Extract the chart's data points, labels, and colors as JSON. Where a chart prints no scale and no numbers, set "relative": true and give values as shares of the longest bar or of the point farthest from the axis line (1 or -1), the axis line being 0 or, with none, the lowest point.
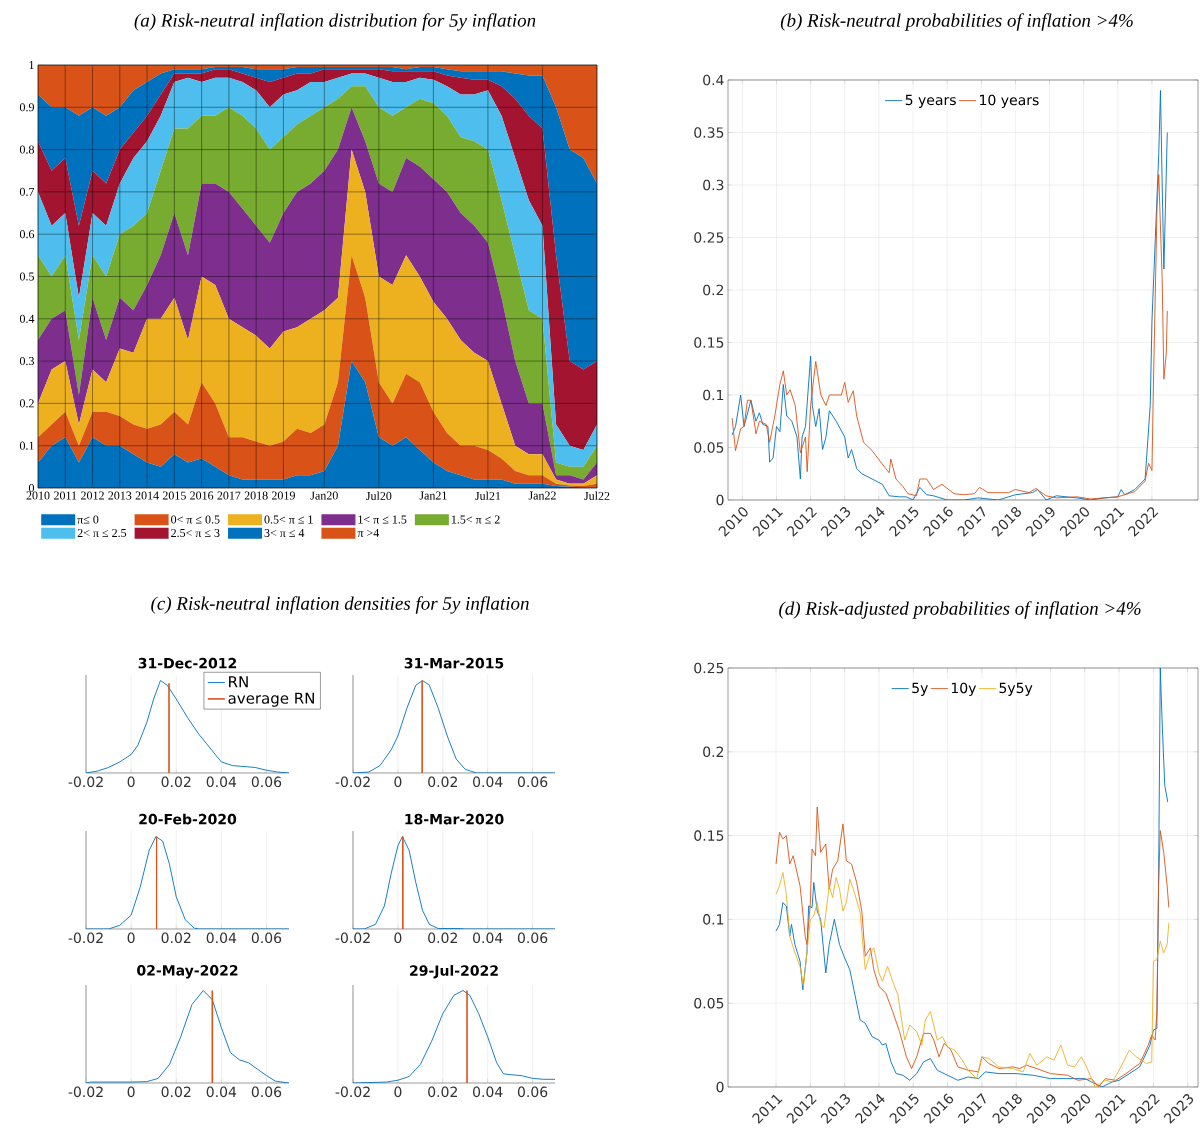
{
  "chart_data": [
    {
      "type": "area",
      "stacked": true,
      "title": "(a)   Risk-neutral inflation distribution for 5y inflation",
      "categories": [
        "2010",
        null,
        "2011",
        null,
        "2012",
        null,
        "2013",
        null,
        "2014",
        null,
        "2015",
        null,
        "2016",
        null,
        "2017",
        null,
        "2018",
        null,
        "2019",
        null,
        null,
        "Jan20",
        null,
        null,
        null,
        "Jul20",
        null,
        null,
        null,
        "Jan21",
        null,
        null,
        null,
        "Jul21",
        null,
        null,
        null,
        "Jan22",
        null,
        null,
        null,
        "Jul22"
      ],
      "ylim": [
        0,
        1
      ],
      "yticks": [
        0,
        0.1,
        0.2,
        0.3,
        0.4,
        0.5,
        0.6,
        0.7,
        0.8,
        0.9,
        1
      ],
      "grid": true,
      "legend": "bottom",
      "series": [
        {
          "name": "π≤ 0",
          "color": "#0072bd",
          "values": [
            0.06,
            0.1,
            0.12,
            0.06,
            0.12,
            0.1,
            0.1,
            0.08,
            0.06,
            0.05,
            0.08,
            0.06,
            0.07,
            0.05,
            0.03,
            0.02,
            0.02,
            0.02,
            0.02,
            0.03,
            0.03,
            0.04,
            0.1,
            0.3,
            0.25,
            0.12,
            0.1,
            0.12,
            0.09,
            0.06,
            0.04,
            0.03,
            0.02,
            0.02,
            0.02,
            0.01,
            0.01,
            0.01,
            0.005,
            0.003,
            0.002,
            0.002
          ]
        },
        {
          "name": "0< π ≤ 0.5",
          "color": "#d95319",
          "values": [
            0.06,
            0.05,
            0.06,
            0.04,
            0.06,
            0.08,
            0.07,
            0.07,
            0.08,
            0.1,
            0.1,
            0.09,
            0.18,
            0.15,
            0.09,
            0.1,
            0.09,
            0.08,
            0.09,
            0.11,
            0.1,
            0.11,
            0.15,
            0.25,
            0.2,
            0.13,
            0.1,
            0.15,
            0.16,
            0.12,
            0.09,
            0.07,
            0.08,
            0.07,
            0.05,
            0.03,
            0.02,
            0.02,
            0.005,
            0.003,
            0.003,
            0.008
          ]
        },
        {
          "name": "0.5< π ≤ 1",
          "color": "#edb120",
          "values": [
            0.08,
            0.13,
            0.12,
            0.05,
            0.1,
            0.07,
            0.16,
            0.17,
            0.26,
            0.25,
            0.27,
            0.2,
            0.25,
            0.28,
            0.28,
            0.26,
            0.25,
            0.23,
            0.26,
            0.24,
            0.27,
            0.27,
            0.2,
            0.25,
            0.25,
            0.25,
            0.28,
            0.28,
            0.25,
            0.26,
            0.27,
            0.25,
            0.22,
            0.21,
            0.13,
            0.06,
            0.05,
            0.05,
            0.01,
            0.004,
            0.005,
            0.02
          ]
        },
        {
          "name": "1< π ≤ 1.5",
          "color": "#7e2f8e",
          "values": [
            0.15,
            0.12,
            0.12,
            0.07,
            0.17,
            0.1,
            0.12,
            0.1,
            0.08,
            0.15,
            0.2,
            0.2,
            0.22,
            0.24,
            0.3,
            0.28,
            0.26,
            0.25,
            0.28,
            0.32,
            0.32,
            0.33,
            0.35,
            0.1,
            0.12,
            0.22,
            0.22,
            0.23,
            0.26,
            0.29,
            0.3,
            0.3,
            0.3,
            0.28,
            0.25,
            0.2,
            0.12,
            0.12,
            0.01,
            0.02,
            0.01,
            0.03
          ]
        },
        {
          "name": "1.5< π ≤ 2",
          "color": "#77ac30",
          "values": [
            0.2,
            0.1,
            0.13,
            0.13,
            0.1,
            0.15,
            0.15,
            0.2,
            0.17,
            0.2,
            0.2,
            0.3,
            0.16,
            0.16,
            0.2,
            0.22,
            0.23,
            0.22,
            0.18,
            0.16,
            0.16,
            0.15,
            0.12,
            0.05,
            0.13,
            0.18,
            0.18,
            0.12,
            0.16,
            0.18,
            0.18,
            0.18,
            0.2,
            0.22,
            0.23,
            0.25,
            0.22,
            0.2,
            0.03,
            0.02,
            0.03,
            0.04
          ]
        },
        {
          "name": "2< π ≤ 2.5",
          "color": "#4dbeee",
          "values": [
            0.15,
            0.12,
            0.1,
            0.1,
            0.1,
            0.12,
            0.12,
            0.16,
            0.17,
            0.13,
            0.11,
            0.12,
            0.08,
            0.09,
            0.07,
            0.08,
            0.09,
            0.1,
            0.1,
            0.08,
            0.08,
            0.06,
            0.05,
            0.03,
            0.03,
            0.07,
            0.08,
            0.06,
            0.05,
            0.055,
            0.07,
            0.1,
            0.11,
            0.14,
            0.2,
            0.23,
            0.26,
            0.22,
            0.09,
            0.05,
            0.04,
            0.05
          ]
        },
        {
          "name": "2.5< π ≤ 3",
          "color": "#a2142f",
          "values": [
            0.12,
            0.13,
            0.13,
            0.17,
            0.1,
            0.1,
            0.08,
            0.06,
            0.06,
            0.05,
            0.02,
            0.01,
            0.02,
            0.02,
            0.02,
            0.02,
            0.03,
            0.06,
            0.04,
            0.04,
            0.02,
            0.03,
            0.02,
            0.01,
            0.01,
            0.02,
            0.025,
            0.025,
            0.015,
            0.02,
            0.025,
            0.04,
            0.035,
            0.025,
            0.07,
            0.14,
            0.2,
            0.23,
            0.4,
            0.2,
            0.19,
            0.15
          ]
        },
        {
          "name": "3< π ≤ 4",
          "color": "#0072bd",
          "values": [
            0.11,
            0.15,
            0.12,
            0.26,
            0.15,
            0.16,
            0.1,
            0.1,
            0.08,
            0.05,
            0.01,
            0.01,
            0.01,
            0.005,
            0.005,
            0.015,
            0.02,
            0.03,
            0.02,
            0.015,
            0.015,
            0.005,
            0.005,
            0.005,
            0.005,
            0.005,
            0.01,
            0.005,
            0.01,
            0.01,
            0.015,
            0.015,
            0.02,
            0.02,
            0.035,
            0.06,
            0.095,
            0.125,
            0.35,
            0.5,
            0.5,
            0.42
          ]
        },
        {
          "name": "π >4",
          "color": "#d95319",
          "values": [
            0.07,
            0.1,
            0.1,
            0.12,
            0.1,
            0.12,
            0.1,
            0.06,
            0.04,
            0.02,
            0.01,
            0.01,
            0.01,
            0.005,
            0.005,
            0.005,
            0.01,
            0.01,
            0.01,
            0.005,
            0.005,
            0.005,
            0.005,
            0.005,
            0.005,
            0.005,
            0.005,
            0.01,
            0.005,
            0.005,
            0.01,
            0.015,
            0.015,
            0.015,
            0.015,
            0.02,
            0.025,
            0.025,
            0.1,
            0.2,
            0.22,
            0.28
          ]
        }
      ]
    },
    {
      "type": "line",
      "title": "(b)   Risk-neutral probabilities of inflation >4%",
      "xlim": [
        2009.58,
        2023.35
      ],
      "xticks": [
        2010,
        2011,
        2012,
        2013,
        2014,
        2015,
        2016,
        2017,
        2018,
        2019,
        2020,
        2021,
        2022
      ],
      "ylim": [
        0,
        0.4
      ],
      "yticks": [
        0,
        0.05,
        0.1,
        0.15,
        0.2,
        0.25,
        0.3,
        0.35,
        0.4
      ],
      "grid": true,
      "legend": "top",
      "series": [
        {
          "name": "5 years",
          "color": "#0072bd",
          "x": [
            2009.7,
            2009.8,
            2009.95,
            2010.05,
            2010.25,
            2010.4,
            2010.5,
            2010.6,
            2010.75,
            2010.8,
            2010.9,
            2011.0,
            2011.1,
            2011.2,
            2011.3,
            2011.45,
            2011.55,
            2011.6,
            2011.7,
            2011.75,
            2011.85,
            2012.0,
            2012.05,
            2012.15,
            2012.25,
            2012.35,
            2012.45,
            2012.55,
            2012.75,
            2013.0,
            2013.1,
            2013.2,
            2013.35,
            2013.5,
            2013.8,
            2014.1,
            2014.3,
            2014.6,
            2014.8,
            2015.0,
            2015.2,
            2015.4,
            2015.6,
            2016.0,
            2016.5,
            2016.9,
            2017.5,
            2018.0,
            2018.5,
            2018.65,
            2018.9,
            2019.2,
            2019.8,
            2020.2,
            2020.6,
            2021.0,
            2021.1,
            2021.2,
            2021.5,
            2021.8,
            2021.95,
            2022.0,
            2022.1,
            2022.2,
            2022.25,
            2022.3,
            2022.35,
            2022.45
          ],
          "values": [
            0.062,
            0.07,
            0.1,
            0.07,
            0.095,
            0.075,
            0.083,
            0.072,
            0.07,
            0.036,
            0.04,
            0.07,
            0.065,
            0.11,
            0.08,
            0.075,
            0.065,
            0.06,
            0.02,
            0.06,
            0.07,
            0.137,
            0.09,
            0.07,
            0.087,
            0.048,
            0.06,
            0.085,
            0.075,
            0.06,
            0.04,
            0.048,
            0.03,
            0.025,
            0.02,
            0.015,
            0.004,
            0.003,
            0.003,
            0.0,
            0.012,
            0.005,
            0.004,
            0.0,
            0.0,
            0.002,
            0.0,
            0.005,
            0.007,
            0.01,
            0.0,
            0.004,
            0.002,
            0.0,
            0.002,
            0.003,
            0.01,
            0.005,
            0.01,
            0.02,
            0.09,
            0.17,
            0.25,
            0.33,
            0.39,
            0.3,
            0.22,
            0.35
          ]
        },
        {
          "name": "10 years",
          "color": "#d95319",
          "x": [
            2009.7,
            2009.8,
            2009.95,
            2010.05,
            2010.15,
            2010.25,
            2010.4,
            2010.5,
            2010.7,
            2010.8,
            2010.95,
            2011.1,
            2011.2,
            2011.3,
            2011.4,
            2011.55,
            2011.7,
            2011.85,
            2011.9,
            2012.0,
            2012.15,
            2012.3,
            2012.45,
            2012.55,
            2012.9,
            2013.0,
            2013.1,
            2013.25,
            2013.35,
            2013.55,
            2013.8,
            2014.2,
            2014.3,
            2014.35,
            2014.5,
            2014.7,
            2014.85,
            2015.1,
            2015.2,
            2015.4,
            2015.6,
            2015.85,
            2016.2,
            2016.5,
            2016.8,
            2016.95,
            2017.2,
            2017.8,
            2018.0,
            2018.4,
            2018.6,
            2018.9,
            2019.2,
            2019.8,
            2020.2,
            2020.6,
            2021.0,
            2021.5,
            2021.8,
            2021.9,
            2022.0,
            2022.05,
            2022.15,
            2022.2,
            2022.3,
            2022.35,
            2022.42,
            2022.45
          ],
          "values": [
            0.078,
            0.047,
            0.068,
            0.07,
            0.095,
            0.095,
            0.063,
            0.075,
            0.072,
            0.055,
            0.08,
            0.11,
            0.123,
            0.1,
            0.105,
            0.09,
            0.045,
            0.06,
            0.027,
            0.09,
            0.132,
            0.1,
            0.09,
            0.1,
            0.1,
            0.112,
            0.093,
            0.104,
            0.08,
            0.055,
            0.047,
            0.03,
            0.026,
            0.039,
            0.02,
            0.013,
            0.006,
            0.004,
            0.02,
            0.02,
            0.01,
            0.015,
            0.006,
            0.005,
            0.006,
            0.012,
            0.007,
            0.007,
            0.01,
            0.007,
            0.011,
            0.004,
            0.002,
            0.003,
            0.001,
            0.002,
            0.003,
            0.008,
            0.018,
            0.035,
            0.028,
            0.12,
            0.28,
            0.31,
            0.21,
            0.115,
            0.14,
            0.18
          ]
        }
      ]
    },
    {
      "type": "line",
      "title": "(c)   Risk-neutral inflation densities for 5y inflation",
      "subtitle": "31-Dec-2012",
      "relative": true,
      "xlim": [
        -0.02,
        0.07
      ],
      "xticks": [
        -0.02,
        0,
        0.02,
        0.04,
        0.06
      ],
      "grid": "x",
      "legend": "top right",
      "series": [
        {
          "name": "RN",
          "color": "#0072bd",
          "x": [
            -0.02,
            -0.015,
            -0.01,
            -0.005,
            0,
            0.003,
            0.007,
            0.01,
            0.013,
            0.016,
            0.02,
            0.025,
            0.03,
            0.035,
            0.04,
            0.045,
            0.05,
            0.055,
            0.06,
            0.065,
            0.07
          ],
          "values": [
            0,
            0.02,
            0.06,
            0.12,
            0.2,
            0.3,
            0.55,
            0.8,
            1,
            0.95,
            0.8,
            0.6,
            0.42,
            0.27,
            0.12,
            0.08,
            0.07,
            0.06,
            0.03,
            0.01,
            0
          ]
        },
        {
          "name": "average RN",
          "color": "#d95319",
          "x": [
            0.0168,
            0.0168
          ],
          "values": [
            0,
            0.97
          ]
        }
      ]
    },
    {
      "type": "line",
      "title": "31-Mar-2015",
      "relative": true,
      "xlim": [
        -0.02,
        0.07
      ],
      "xticks": [
        -0.02,
        0,
        0.02,
        0.04,
        0.06
      ],
      "grid": "x",
      "series": [
        {
          "color": "#0072bd",
          "x": [
            -0.02,
            -0.013,
            -0.008,
            -0.003,
            0,
            0.004,
            0.008,
            0.011,
            0.014,
            0.018,
            0.022,
            0.026,
            0.03,
            0.035,
            0.07
          ],
          "values": [
            0,
            0.01,
            0.08,
            0.25,
            0.4,
            0.7,
            0.95,
            1,
            0.95,
            0.7,
            0.4,
            0.15,
            0.04,
            0,
            0
          ]
        },
        {
          "color": "#d95319",
          "x": [
            0.0108,
            0.0108
          ],
          "values": [
            0,
            1
          ]
        }
      ]
    },
    {
      "type": "line",
      "title": "20-Feb-2020",
      "relative": true,
      "xlim": [
        -0.02,
        0.07
      ],
      "xticks": [
        -0.02,
        0,
        0.02,
        0.04,
        0.06
      ],
      "grid": "x",
      "series": [
        {
          "color": "#0072bd",
          "x": [
            -0.02,
            -0.01,
            -0.005,
            0,
            0.004,
            0.008,
            0.011,
            0.014,
            0.017,
            0.02,
            0.024,
            0.028,
            0.03,
            0.07
          ],
          "values": [
            0,
            0,
            0.04,
            0.15,
            0.45,
            0.85,
            1,
            0.95,
            0.7,
            0.35,
            0.1,
            0.01,
            0,
            0
          ]
        },
        {
          "color": "#d95319",
          "x": [
            0.0113,
            0.0113
          ],
          "values": [
            0,
            1
          ]
        }
      ]
    },
    {
      "type": "line",
      "title": "18-Mar-2020",
      "relative": true,
      "xlim": [
        -0.02,
        0.07
      ],
      "xticks": [
        -0.02,
        0,
        0.02,
        0.04,
        0.06
      ],
      "grid": "x",
      "series": [
        {
          "color": "#0072bd",
          "x": [
            -0.02,
            -0.015,
            -0.01,
            -0.006,
            -0.003,
            0,
            0.002,
            0.005,
            0.008,
            0.011,
            0.014,
            0.018,
            0.028,
            0.03,
            0.07
          ],
          "values": [
            0,
            0,
            0.05,
            0.25,
            0.6,
            0.9,
            1,
            0.85,
            0.5,
            0.2,
            0.05,
            0.005,
            0.005,
            0,
            0
          ]
        },
        {
          "color": "#d95319",
          "x": [
            0.0022,
            0.0022
          ],
          "values": [
            0,
            1
          ]
        }
      ]
    },
    {
      "type": "line",
      "title": "02-May-2022",
      "relative": true,
      "xlim": [
        -0.02,
        0.07
      ],
      "xticks": [
        -0.02,
        0,
        0.02,
        0.04,
        0.06
      ],
      "grid": "x",
      "series": [
        {
          "color": "#0072bd",
          "x": [
            -0.02,
            -0.018,
            0,
            0.007,
            0.012,
            0.017,
            0.022,
            0.027,
            0.032,
            0.036,
            0.04,
            0.044,
            0.048,
            0.052,
            0.056,
            0.06,
            0.064,
            0.07
          ],
          "values": [
            0,
            0.01,
            0.01,
            0.015,
            0.05,
            0.2,
            0.5,
            0.85,
            1,
            0.9,
            0.6,
            0.33,
            0.25,
            0.22,
            0.15,
            0.08,
            0.02,
            0
          ]
        },
        {
          "color": "#d95319",
          "x": [
            0.036,
            0.036
          ],
          "values": [
            0,
            1
          ]
        }
      ]
    },
    {
      "type": "line",
      "title": "29-Jul-2022",
      "relative": true,
      "xlim": [
        -0.02,
        0.07
      ],
      "xticks": [
        -0.02,
        0,
        0.02,
        0.04,
        0.06
      ],
      "grid": "x",
      "series": [
        {
          "color": "#0072bd",
          "x": [
            -0.02,
            -0.005,
            0,
            0.005,
            0.01,
            0.015,
            0.02,
            0.025,
            0.029,
            0.032,
            0.036,
            0.04,
            0.044,
            0.047,
            0.05,
            0.055,
            0.06,
            0.065,
            0.07
          ],
          "values": [
            0,
            0.01,
            0.03,
            0.07,
            0.2,
            0.45,
            0.75,
            0.95,
            1,
            0.95,
            0.75,
            0.5,
            0.22,
            0.1,
            0.09,
            0.08,
            0.05,
            0.04,
            0.04
          ]
        },
        {
          "color": "#d95319",
          "x": [
            0.0308,
            0.0308
          ],
          "values": [
            0,
            1
          ]
        }
      ]
    },
    {
      "type": "line",
      "title": "(d)   Risk-adjusted probabilities of inflation >4%",
      "xlim": [
        2009.6,
        2023.3
      ],
      "xticks": [
        2011,
        2012,
        2013,
        2014,
        2015,
        2016,
        2017,
        2018,
        2019,
        2020,
        2021,
        2022,
        2023
      ],
      "ylim": [
        0,
        0.25
      ],
      "yticks": [
        0,
        0.05,
        0.1,
        0.15,
        0.2,
        0.25
      ],
      "grid": true,
      "legend": "top",
      "series": [
        {
          "name": "5y",
          "color": "#0072bd",
          "x": [
            2011.0,
            2011.1,
            2011.2,
            2011.3,
            2011.4,
            2011.45,
            2011.55,
            2011.7,
            2011.78,
            2011.9,
            2011.95,
            2012.05,
            2012.1,
            2012.2,
            2012.3,
            2012.45,
            2012.55,
            2012.7,
            2012.85,
            2013.0,
            2013.15,
            2013.3,
            2013.45,
            2013.6,
            2013.8,
            2014.0,
            2014.1,
            2014.2,
            2014.35,
            2014.5,
            2014.7,
            2014.9,
            2015.1,
            2015.3,
            2015.5,
            2015.7,
            2015.9,
            2016.1,
            2016.3,
            2016.6,
            2016.9,
            2017.1,
            2017.5,
            2018.0,
            2018.5,
            2019.0,
            2019.5,
            2020.0,
            2020.3,
            2020.5,
            2020.8,
            2021.0,
            2021.3,
            2021.6,
            2021.9,
            2022.0,
            2022.1,
            2022.15,
            2022.2,
            2022.25,
            2022.33,
            2022.42
          ],
          "values": [
            0.093,
            0.097,
            0.11,
            0.108,
            0.09,
            0.097,
            0.085,
            0.075,
            0.058,
            0.08,
            0.108,
            0.107,
            0.122,
            0.105,
            0.1,
            0.068,
            0.085,
            0.1,
            0.085,
            0.077,
            0.07,
            0.055,
            0.04,
            0.038,
            0.03,
            0.028,
            0.025,
            0.026,
            0.015,
            0.008,
            0.007,
            0.004,
            0.008,
            0.015,
            0.017,
            0.01,
            0.008,
            0.006,
            0.004,
            0.006,
            0.005,
            0.009,
            0.008,
            0.008,
            0.007,
            0.005,
            0.005,
            0.005,
            0.002,
            0.0,
            0.003,
            0.004,
            0.008,
            0.012,
            0.025,
            0.034,
            0.035,
            0.12,
            0.25,
            0.22,
            0.18,
            0.17
          ]
        },
        {
          "name": "10y",
          "color": "#d95319",
          "x": [
            2011.0,
            2011.1,
            2011.2,
            2011.3,
            2011.4,
            2011.5,
            2011.7,
            2011.85,
            2011.9,
            2012.0,
            2012.05,
            2012.15,
            2012.2,
            2012.3,
            2012.45,
            2012.55,
            2012.65,
            2012.8,
            2012.95,
            2013.05,
            2013.2,
            2013.35,
            2013.5,
            2013.6,
            2013.75,
            2013.85,
            2014.0,
            2014.2,
            2014.4,
            2014.6,
            2014.8,
            2014.95,
            2015.1,
            2015.3,
            2015.5,
            2015.6,
            2015.75,
            2015.9,
            2016.1,
            2016.3,
            2016.6,
            2016.9,
            2017.0,
            2017.2,
            2017.5,
            2017.9,
            2018.1,
            2018.3,
            2018.6,
            2019.0,
            2019.5,
            2019.8,
            2020.2,
            2020.4,
            2020.6,
            2020.9,
            2021.2,
            2021.6,
            2021.85,
            2021.95,
            2022.05,
            2022.1,
            2022.15,
            2022.2,
            2022.3,
            2022.4,
            2022.45
          ],
          "values": [
            0.133,
            0.152,
            0.148,
            0.15,
            0.133,
            0.138,
            0.12,
            0.09,
            0.085,
            0.11,
            0.142,
            0.138,
            0.167,
            0.14,
            0.145,
            0.118,
            0.13,
            0.135,
            0.157,
            0.135,
            0.133,
            0.122,
            0.105,
            0.078,
            0.083,
            0.07,
            0.06,
            0.056,
            0.045,
            0.033,
            0.018,
            0.011,
            0.018,
            0.032,
            0.032,
            0.028,
            0.018,
            0.026,
            0.022,
            0.012,
            0.01,
            0.009,
            0.018,
            0.014,
            0.011,
            0.012,
            0.011,
            0.013,
            0.011,
            0.008,
            0.007,
            0.004,
            0.005,
            0.0,
            0.005,
            0.004,
            0.008,
            0.014,
            0.025,
            0.031,
            0.028,
            0.045,
            0.12,
            0.153,
            0.14,
            0.12,
            0.107
          ]
        },
        {
          "name": "5y5y",
          "color": "#edb120",
          "x": [
            2011.0,
            2011.1,
            2011.2,
            2011.3,
            2011.4,
            2011.55,
            2011.7,
            2011.8,
            2011.9,
            2012.0,
            2012.1,
            2012.2,
            2012.3,
            2012.4,
            2012.55,
            2012.65,
            2012.75,
            2012.85,
            2012.95,
            2013.05,
            2013.15,
            2013.3,
            2013.45,
            2013.6,
            2013.75,
            2013.85,
            2014.0,
            2014.1,
            2014.25,
            2014.4,
            2014.55,
            2014.75,
            2014.9,
            2015.1,
            2015.25,
            2015.35,
            2015.5,
            2015.7,
            2015.85,
            2016.0,
            2016.2,
            2016.4,
            2016.6,
            2016.85,
            2017.0,
            2017.2,
            2017.5,
            2017.9,
            2018.2,
            2018.4,
            2018.6,
            2018.9,
            2019.1,
            2019.3,
            2019.5,
            2019.7,
            2019.9,
            2020.05,
            2020.3,
            2020.6,
            2020.8,
            2021.0,
            2021.3,
            2021.5,
            2021.8,
            2021.95,
            2022.0,
            2022.1,
            2022.2,
            2022.3,
            2022.4,
            2022.45
          ],
          "values": [
            0.115,
            0.12,
            0.128,
            0.115,
            0.09,
            0.08,
            0.072,
            0.06,
            0.08,
            0.1,
            0.102,
            0.11,
            0.097,
            0.095,
            0.12,
            0.113,
            0.125,
            0.118,
            0.105,
            0.11,
            0.124,
            0.115,
            0.104,
            0.07,
            0.08,
            0.083,
            0.068,
            0.063,
            0.072,
            0.063,
            0.055,
            0.028,
            0.037,
            0.033,
            0.025,
            0.04,
            0.045,
            0.028,
            0.03,
            0.024,
            0.022,
            0.017,
            0.01,
            0.005,
            0.018,
            0.017,
            0.012,
            0.011,
            0.009,
            0.02,
            0.013,
            0.018,
            0.016,
            0.025,
            0.013,
            0.012,
            0.018,
            0.012,
            0.0,
            0.004,
            0.003,
            0.01,
            0.022,
            0.018,
            0.014,
            0.015,
            0.075,
            0.076,
            0.087,
            0.08,
            0.085,
            0.098
          ]
        }
      ]
    }
  ]
}
